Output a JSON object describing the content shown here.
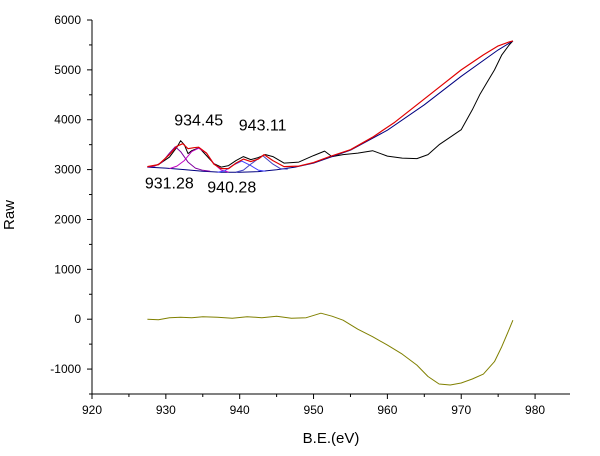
{
  "chart_data": {
    "type": "line",
    "xlabel": "B.E.(eV)",
    "ylabel": "Raw",
    "xlim": [
      920,
      985
    ],
    "ylim": [
      -1500,
      6000
    ],
    "x_ticks": [
      920,
      930,
      940,
      950,
      960,
      970,
      980
    ],
    "y_ticks": [
      -1000,
      0,
      1000,
      2000,
      3000,
      4000,
      5000,
      6000
    ],
    "grid": false,
    "legend": "none",
    "series": [
      {
        "role": "raw",
        "color": "#000000",
        "x": [
          927.5,
          929,
          930.5,
          931.5,
          932,
          932.5,
          933,
          933.5,
          934.5,
          935.5,
          936.5,
          937.5,
          938.5,
          939.5,
          940.5,
          941.5,
          942.5,
          943.5,
          944.5,
          946,
          948,
          950,
          951.5,
          952.5,
          954,
          956,
          958,
          960,
          962,
          964,
          965.5,
          967,
          968.5,
          970,
          971.5,
          972.5,
          973.5,
          974.5,
          975.5,
          976.5,
          977
        ],
        "y": [
          3050,
          3100,
          3250,
          3450,
          3580,
          3500,
          3320,
          3380,
          3440,
          3280,
          3120,
          3050,
          3080,
          3180,
          3260,
          3200,
          3240,
          3300,
          3260,
          3130,
          3150,
          3280,
          3370,
          3260,
          3300,
          3330,
          3380,
          3270,
          3230,
          3220,
          3300,
          3500,
          3650,
          3800,
          4200,
          4500,
          4750,
          5000,
          5300,
          5500,
          5580
        ]
      },
      {
        "role": "background",
        "color": "#000080",
        "x": [
          927.5,
          930,
          932.5,
          935,
          937.5,
          940,
          942.5,
          945,
          947.5,
          950,
          955,
          960,
          965,
          970,
          975,
          977
        ],
        "y": [
          3050,
          3030,
          3000,
          2965,
          2945,
          2945,
          2960,
          2995,
          3050,
          3130,
          3390,
          3790,
          4300,
          4870,
          5400,
          5580
        ]
      },
      {
        "role": "peak",
        "center_label": "931.28",
        "color": "#8000a0",
        "x": [
          927.5,
          928.5,
          929.5,
          930.5,
          931.28,
          932,
          933,
          934,
          935,
          936
        ],
        "y": [
          3050,
          3070,
          3150,
          3330,
          3460,
          3360,
          3150,
          3030,
          2985,
          2965
        ]
      },
      {
        "role": "peak",
        "center_label": "934.45",
        "color": "#c000c0",
        "x": [
          930.5,
          931.5,
          932.5,
          933.5,
          934.45,
          935.5,
          936.5,
          937.5,
          938.5
        ],
        "y": [
          3020,
          3070,
          3180,
          3360,
          3430,
          3330,
          3120,
          2990,
          2950
        ]
      },
      {
        "role": "peak",
        "center_label": "940.28",
        "color": "#4040ff",
        "x": [
          937,
          938,
          939,
          940.28,
          941.5,
          942.5,
          943.5
        ],
        "y": [
          2945,
          2975,
          3080,
          3170,
          3080,
          2990,
          2965
        ]
      },
      {
        "role": "peak",
        "center_label": "943.11",
        "color": "#4040c0",
        "x": [
          939.5,
          940.5,
          941.5,
          943.11,
          944.5,
          945.5,
          946.5
        ],
        "y": [
          2950,
          2990,
          3110,
          3280,
          3110,
          3020,
          3010
        ]
      },
      {
        "role": "fit",
        "color": "#e00000",
        "x": [
          927.5,
          929,
          930.5,
          931.5,
          932.3,
          933,
          933.8,
          934.45,
          935.5,
          936.5,
          937.5,
          938.5,
          939.5,
          940.5,
          941.5,
          942.5,
          943.3,
          944.5,
          946,
          948,
          950,
          952,
          955,
          958,
          961,
          964,
          967,
          970,
          973,
          975,
          976.5,
          977
        ],
        "y": [
          3060,
          3100,
          3300,
          3470,
          3520,
          3420,
          3440,
          3450,
          3330,
          3110,
          3020,
          3020,
          3130,
          3210,
          3160,
          3210,
          3300,
          3180,
          3060,
          3070,
          3140,
          3250,
          3400,
          3650,
          3950,
          4300,
          4650,
          5000,
          5300,
          5480,
          5560,
          5580
        ]
      },
      {
        "role": "residual",
        "color": "#808000",
        "x": [
          927.5,
          929,
          930.5,
          932,
          933.5,
          935,
          937,
          939,
          941,
          943,
          945,
          947,
          949,
          951,
          952.5,
          954,
          956,
          958,
          960,
          962,
          964,
          965.5,
          967,
          968.5,
          970,
          971.5,
          973,
          974.5,
          975.5,
          976.5,
          977
        ],
        "y": [
          0,
          -10,
          30,
          40,
          30,
          50,
          40,
          20,
          50,
          30,
          60,
          20,
          30,
          120,
          60,
          -20,
          -200,
          -350,
          -520,
          -700,
          -920,
          -1150,
          -1300,
          -1320,
          -1280,
          -1200,
          -1100,
          -850,
          -550,
          -200,
          -20
        ]
      }
    ],
    "annotations": [
      {
        "text": "934.45",
        "x": 934.45
      },
      {
        "text": "943.11",
        "x": 943.11
      },
      {
        "text": "931.28",
        "x": 931.28
      },
      {
        "text": "940.28",
        "x": 940.28
      }
    ]
  }
}
